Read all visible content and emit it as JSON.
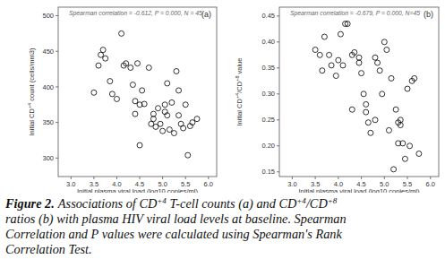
{
  "chart_data": [
    {
      "type": "scatter",
      "annotation": "Spearman correlation = -0.612,  P = 0.000,  N = 45",
      "panel_label": "(a)",
      "xlabel": "Initial plasma viral load (log10 copies/ml)",
      "ylabel": "Initial CD+4 count (cells/mm3)",
      "marker": "open-circle",
      "color": "#000000",
      "grid": false,
      "xlim": [
        2.72,
        6.18
      ],
      "ylim": [
        274,
        512
      ],
      "xticks": [
        {
          "value": 3,
          "label": "3.0"
        },
        {
          "value": 3.5,
          "label": "3.5"
        },
        {
          "value": 4,
          "label": "4.0"
        },
        {
          "value": 4.5,
          "label": "4.5"
        },
        {
          "value": 5,
          "label": "5.0"
        },
        {
          "value": 5.5,
          "label": "5.5"
        },
        {
          "value": 6,
          "label": "6.0"
        }
      ],
      "yticks": [
        300,
        350,
        400,
        450,
        500
      ],
      "x": [
        3.5,
        3.6,
        3.65,
        3.7,
        3.75,
        3.85,
        3.9,
        4.0,
        4.1,
        4.15,
        4.2,
        4.3,
        4.35,
        4.4,
        4.4,
        4.45,
        4.5,
        4.5,
        4.55,
        4.6,
        4.7,
        4.75,
        4.8,
        4.8,
        4.85,
        4.9,
        4.95,
        5.0,
        5.05,
        5.05,
        5.1,
        5.1,
        5.15,
        5.2,
        5.25,
        5.3,
        5.35,
        5.35,
        5.4,
        5.45,
        5.5,
        5.55,
        5.6,
        5.65,
        5.75
      ],
      "values": [
        392,
        430,
        445,
        452,
        440,
        408,
        390,
        383,
        475,
        430,
        433,
        427,
        403,
        380,
        362,
        433,
        375,
        318,
        395,
        376,
        427,
        348,
        362,
        355,
        344,
        370,
        348,
        338,
        375,
        365,
        405,
        360,
        340,
        378,
        335,
        422,
        395,
        360,
        348,
        342,
        375,
        304,
        345,
        350,
        355
      ]
    },
    {
      "type": "scatter",
      "annotation": "Spearman correlation = -0.679,  P = 0.000,  N=45",
      "panel_label": "(b)",
      "xlabel": "Initial plasma viral load (log10 copies/ml)",
      "ylabel": "Initial CD+4/CD+8 value",
      "marker": "open-circle",
      "color": "#000000",
      "grid": false,
      "xlim": [
        2.72,
        6.18
      ],
      "ylim": [
        0.141,
        0.467
      ],
      "xticks": [
        {
          "value": 3,
          "label": "3.0"
        },
        {
          "value": 3.5,
          "label": "3.5"
        },
        {
          "value": 4,
          "label": "4.0"
        },
        {
          "value": 4.5,
          "label": "4.5"
        },
        {
          "value": 5,
          "label": "5.0"
        },
        {
          "value": 5.5,
          "label": "5.5"
        },
        {
          "value": 6,
          "label": "6.0"
        }
      ],
      "yticks": [
        0.15,
        {
          "value": 0.2,
          "label": "0.20"
        },
        0.25,
        {
          "value": 0.3,
          "label": "0.30"
        },
        0.35,
        {
          "value": 0.4,
          "label": "0.40"
        },
        0.45
      ],
      "x": [
        3.5,
        3.6,
        3.65,
        3.7,
        3.8,
        3.85,
        3.95,
        4.0,
        4.05,
        4.1,
        4.15,
        4.2,
        4.3,
        4.3,
        4.35,
        4.45,
        4.45,
        4.5,
        4.55,
        4.6,
        4.6,
        4.65,
        4.7,
        4.8,
        4.8,
        4.85,
        4.9,
        4.95,
        5.0,
        5.05,
        5.1,
        5.15,
        5.2,
        5.25,
        5.3,
        5.3,
        5.35,
        5.35,
        5.4,
        5.45,
        5.5,
        5.55,
        5.6,
        5.65,
        5.75
      ],
      "values": [
        0.385,
        0.375,
        0.345,
        0.41,
        0.375,
        0.355,
        0.335,
        0.365,
        0.415,
        0.355,
        0.435,
        0.435,
        0.27,
        0.375,
        0.38,
        0.36,
        0.37,
        0.34,
        0.3,
        0.28,
        0.265,
        0.245,
        0.225,
        0.37,
        0.25,
        0.36,
        0.345,
        0.3,
        0.4,
        0.385,
        0.23,
        0.33,
        0.155,
        0.27,
        0.245,
        0.205,
        0.25,
        0.24,
        0.205,
        0.175,
        0.31,
        0.2,
        0.325,
        0.33,
        0.185
      ]
    }
  ],
  "caption": {
    "label": "Figure 2.",
    "lines": [
      "Associations of CD+4 T-cell counts (a) and CD+4/CD+8",
      "ratios (b) with plasma HIV viral load levels at baseline. Spearman",
      "Correlation and P values were calculated using Spearman's Rank",
      "Correlation Test."
    ]
  }
}
